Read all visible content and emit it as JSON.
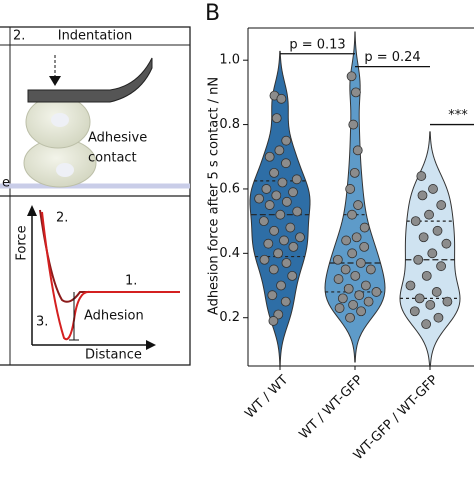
{
  "chart_data": {
    "type": "violin",
    "panel_label": "B",
    "y_label": "Adhesion force after 5 s contact / nN",
    "categories": [
      "WT / WT",
      "WT / WT-GFP",
      "WT-GFP / WT-GFP"
    ],
    "series": [
      {
        "color": "#2e6ea6",
        "values": [
          0.89,
          0.88,
          0.82,
          0.75,
          0.72,
          0.7,
          0.68,
          0.65,
          0.63,
          0.62,
          0.6,
          0.59,
          0.58,
          0.57,
          0.56,
          0.55,
          0.53,
          0.52,
          0.5,
          0.48,
          0.47,
          0.45,
          0.44,
          0.43,
          0.42,
          0.4,
          0.38,
          0.37,
          0.35,
          0.33,
          0.3,
          0.27,
          0.25,
          0.21,
          0.19
        ]
      },
      {
        "color": "#5e9bc9",
        "values": [
          0.95,
          0.9,
          0.8,
          0.72,
          0.65,
          0.6,
          0.55,
          0.52,
          0.48,
          0.45,
          0.44,
          0.42,
          0.4,
          0.38,
          0.37,
          0.35,
          0.35,
          0.33,
          0.32,
          0.3,
          0.29,
          0.28,
          0.27,
          0.26,
          0.25,
          0.24,
          0.23,
          0.22,
          0.2
        ]
      },
      {
        "color": "#cfe3f1",
        "values": [
          0.64,
          0.6,
          0.58,
          0.55,
          0.52,
          0.5,
          0.47,
          0.45,
          0.43,
          0.4,
          0.38,
          0.36,
          0.33,
          0.3,
          0.28,
          0.26,
          0.25,
          0.24,
          0.22,
          0.2,
          0.18
        ]
      }
    ],
    "ylim": [
      0.05,
      1.1
    ],
    "yticks": [
      0.2,
      0.4,
      0.6,
      0.8,
      {
        "value": 1,
        "label": "1.0"
      }
    ],
    "brackets": [
      {
        "from": 0,
        "to": 1,
        "y": 1.02,
        "label": "p = 0.13"
      },
      {
        "from": 1,
        "to": 2,
        "y": 0.98,
        "label": "p = 0.24"
      },
      {
        "from": 2,
        "to": 3,
        "y": 0.8,
        "label": "***"
      }
    ],
    "left_panel": {
      "step": "2.",
      "heading": "Indentation",
      "cell_label": [
        "Adhesive",
        "contact"
      ],
      "cut_text": "e",
      "force_axis": "Force",
      "distance_axis": "Distance",
      "curve_steps": [
        "2.",
        "1.",
        "3."
      ],
      "adhesion": "Adhesion"
    }
  }
}
